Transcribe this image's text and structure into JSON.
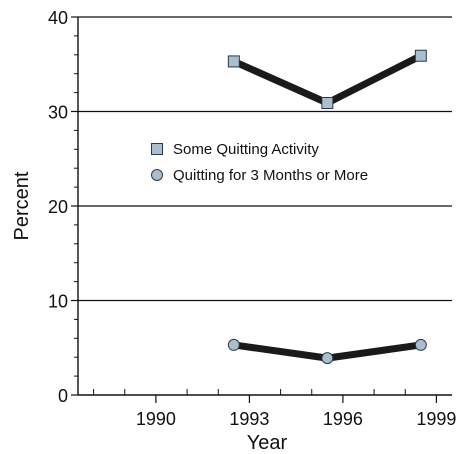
{
  "chart_data": {
    "type": "line",
    "xlabel": "Year",
    "ylabel": "Percent",
    "xlim": [
      1987.5,
      1999.5
    ],
    "ylim": [
      0,
      40
    ],
    "x_ticks": [
      1990,
      1993,
      1996,
      1999
    ],
    "y_ticks": [
      0,
      10,
      20,
      30,
      40
    ],
    "grid": "horizontal",
    "legend": "center",
    "series": [
      {
        "name": "Some Quitting Activity",
        "marker": "square",
        "x": [
          1992.5,
          1995.5,
          1998.5
        ],
        "y": [
          35.3,
          30.9,
          35.9
        ]
      },
      {
        "name": "Quitting for 3 Months or More",
        "marker": "circle",
        "x": [
          1992.5,
          1995.5,
          1998.5
        ],
        "y": [
          5.3,
          3.9,
          5.3
        ]
      }
    ],
    "colors": {
      "line": "#1a1a1a",
      "marker_fill": "#a9bfce",
      "marker_stroke": "#2a3a48",
      "axis": "#111111"
    }
  }
}
